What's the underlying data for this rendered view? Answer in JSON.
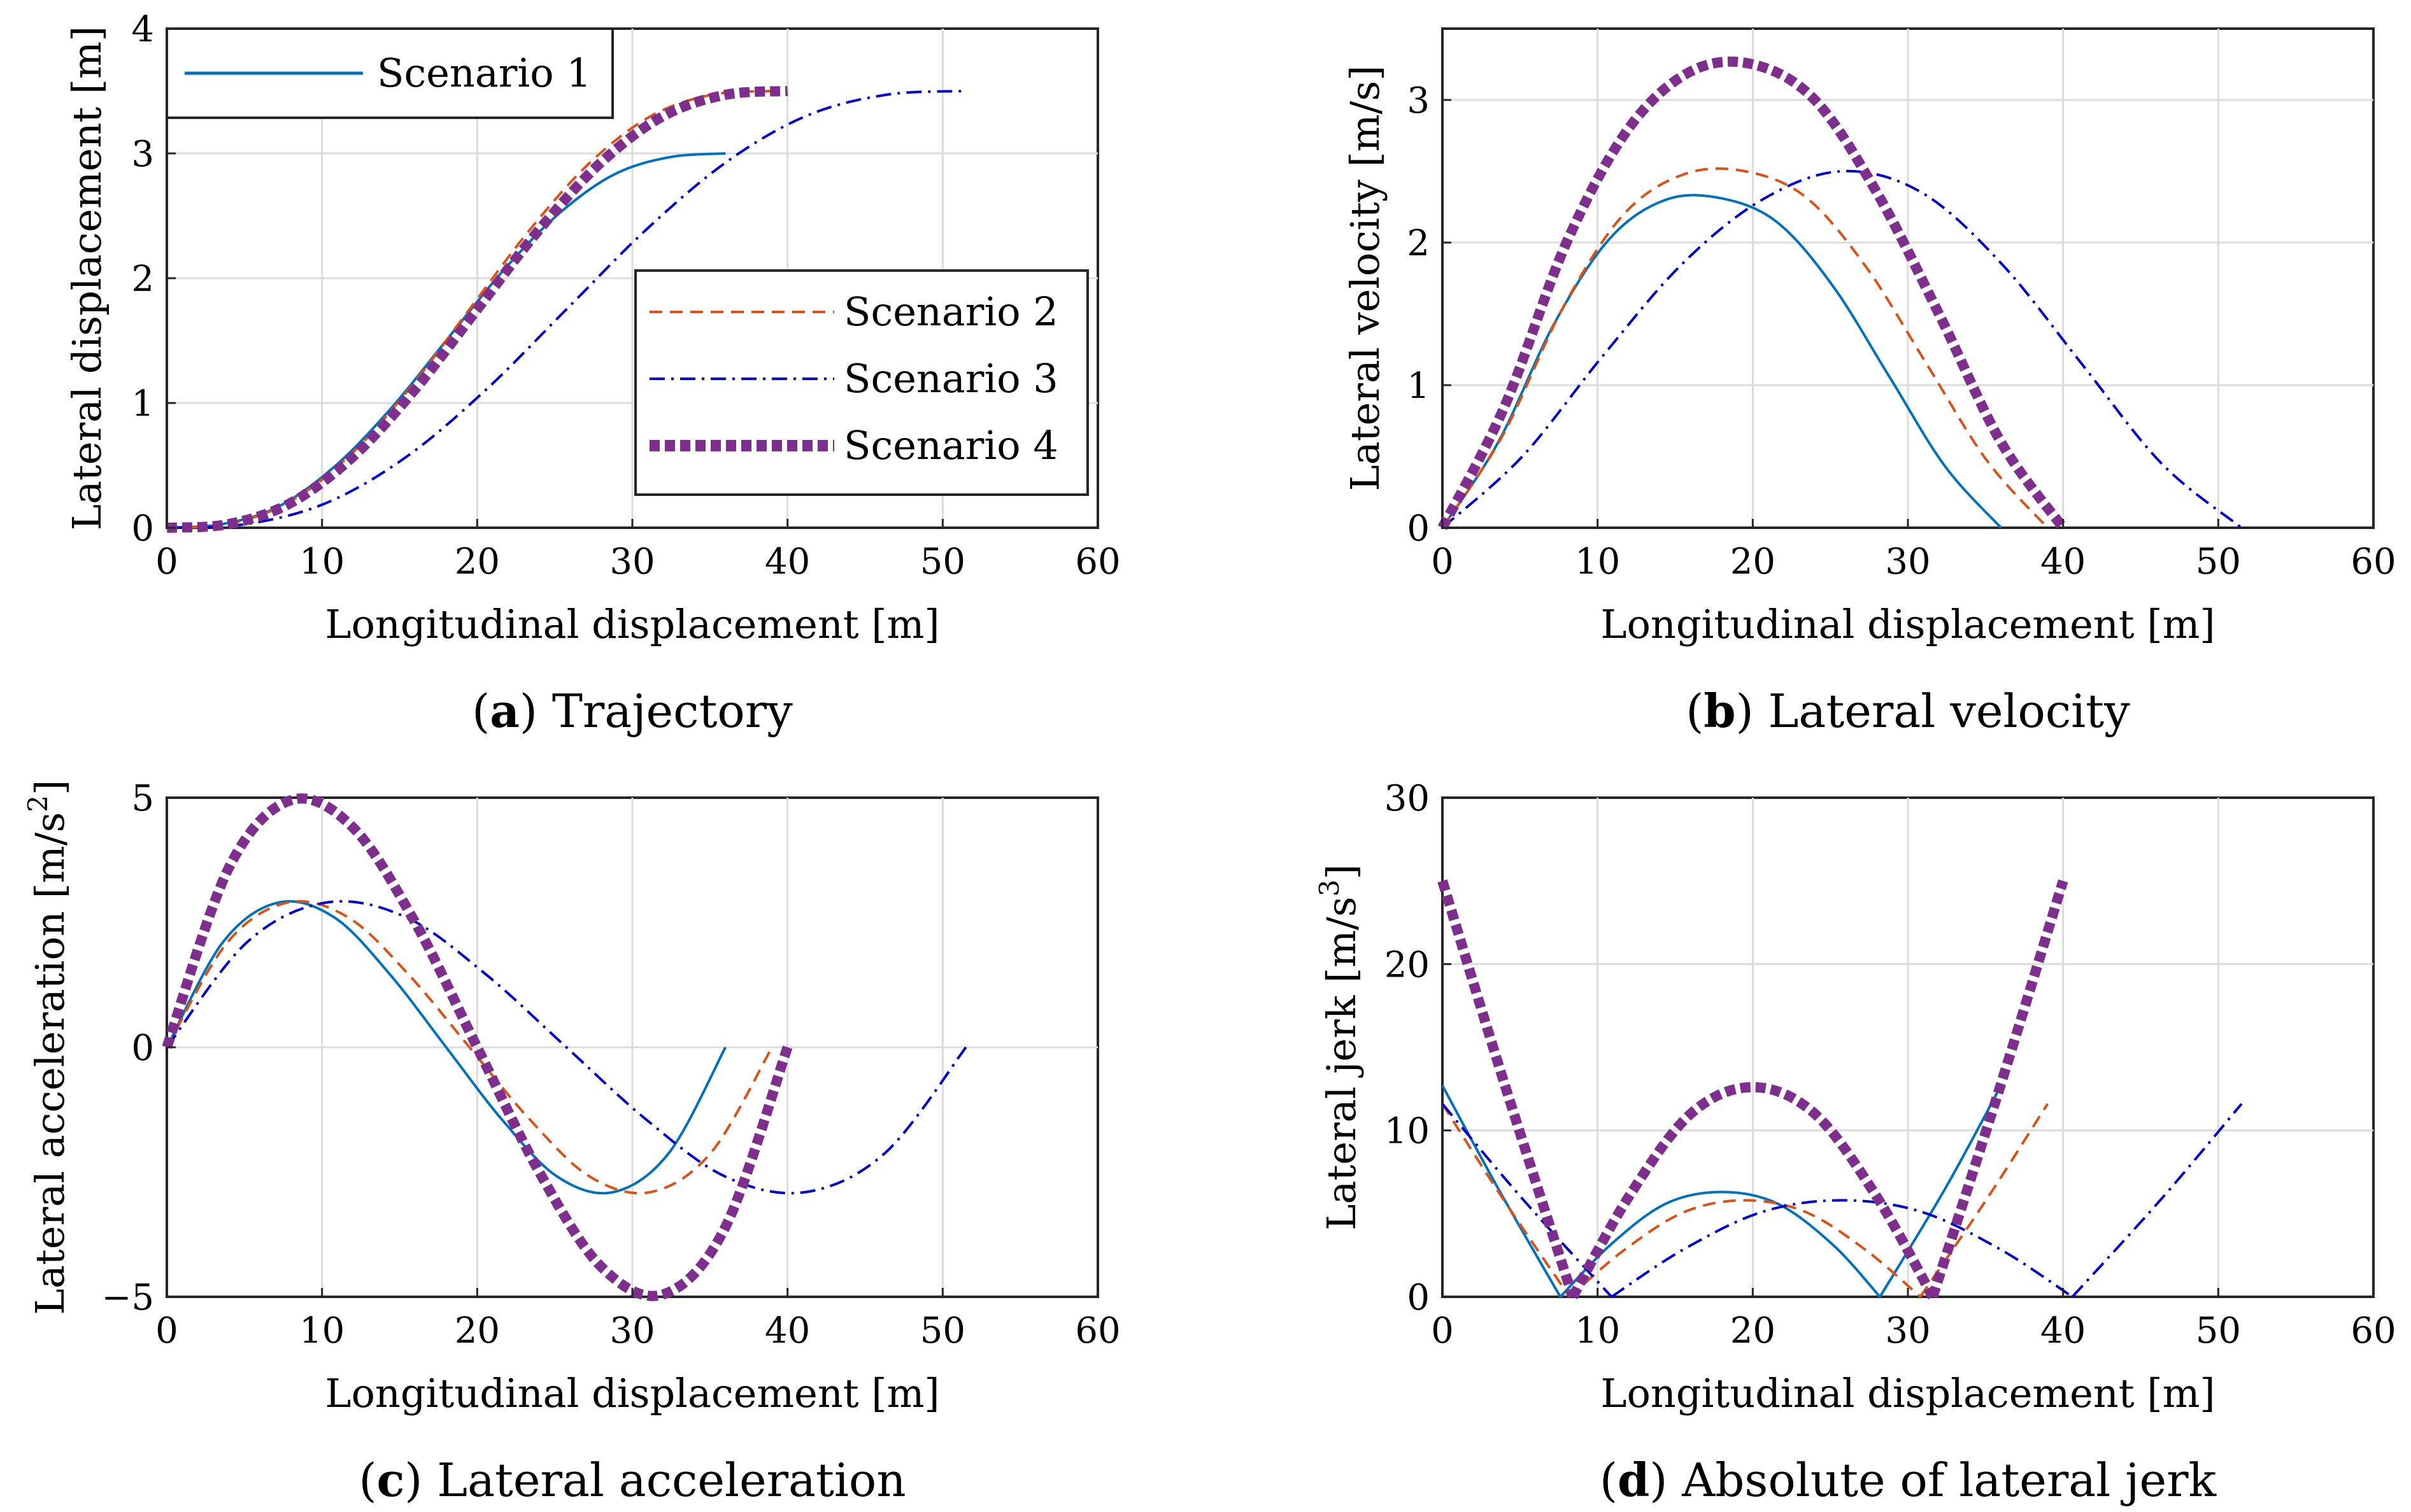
{
  "figure": {
    "panels": [
      "a",
      "b",
      "c",
      "d"
    ]
  },
  "colors": {
    "s1": "#0072BD",
    "s2": "#D95319",
    "s3": "#0000CD",
    "s4": "#7E2F8E",
    "grid": "#dcdcdc",
    "axis": "#262626"
  },
  "legend": {
    "s1": "Scenario 1",
    "s2": "Scenario 2",
    "s3": "Scenario 3",
    "s4": "Scenario 4"
  },
  "captions": {
    "a": {
      "letter": "a",
      "text": " Trajectory"
    },
    "b": {
      "letter": "b",
      "text": " Lateral velocity"
    },
    "c": {
      "letter": "c",
      "text": " Lateral acceleration"
    },
    "d": {
      "letter": "d",
      "text": " Absolute of lateral jerk"
    }
  },
  "chart_data": [
    {
      "id": "a",
      "type": "line",
      "title": "Trajectory",
      "xlabel": "Longitudinal displacement [m]",
      "ylabel": "Lateral displacement [m]",
      "xlim": [
        0,
        60
      ],
      "ylim": [
        0,
        4
      ],
      "xticks": [
        "0",
        "10",
        "20",
        "30",
        "40",
        "50",
        "60"
      ],
      "yticks": [
        "0",
        "1",
        "2",
        "3",
        "4"
      ],
      "legend_position": "top-left and center-right",
      "series": [
        {
          "name": "Scenario 1",
          "x": [
            0,
            3.6,
            7.2,
            10.8,
            14.4,
            18.0,
            21.6,
            25.2,
            28.8,
            32.4,
            36.0
          ],
          "y": [
            0,
            0.03,
            0.17,
            0.49,
            0.95,
            1.5,
            2.05,
            2.51,
            2.83,
            2.97,
            3.0
          ]
        },
        {
          "name": "Scenario 2",
          "x": [
            0,
            3.9,
            7.8,
            11.7,
            15.6,
            19.5,
            23.4,
            27.3,
            31.2,
            35.1,
            39.0
          ],
          "y": [
            0,
            0.03,
            0.2,
            0.57,
            1.11,
            1.75,
            2.39,
            2.93,
            3.3,
            3.47,
            3.5
          ]
        },
        {
          "name": "Scenario 3",
          "x": [
            0,
            5.15,
            10.3,
            15.45,
            20.6,
            25.75,
            30.9,
            36.05,
            41.2,
            46.35,
            51.5
          ],
          "y": [
            0,
            0.03,
            0.2,
            0.57,
            1.11,
            1.75,
            2.39,
            2.93,
            3.3,
            3.47,
            3.5
          ]
        },
        {
          "name": "Scenario 4",
          "x": [
            0,
            4.0,
            8.0,
            12.0,
            16.0,
            20.0,
            24.0,
            28.0,
            32.0,
            36.0,
            40.0
          ],
          "y": [
            0,
            0.03,
            0.2,
            0.57,
            1.11,
            1.75,
            2.39,
            2.93,
            3.3,
            3.47,
            3.5
          ]
        }
      ]
    },
    {
      "id": "b",
      "type": "line",
      "title": "Lateral velocity",
      "xlabel": "Longitudinal displacement [m]",
      "ylabel": "Lateral velocity [m/s]",
      "xlim": [
        0,
        60
      ],
      "ylim": [
        0,
        3.5
      ],
      "xticks": [
        "0",
        "10",
        "20",
        "30",
        "40",
        "50",
        "60"
      ],
      "yticks": [
        "0",
        "1",
        "2",
        "3"
      ],
      "series": [
        {
          "name": "Scenario 1",
          "x": [
            0,
            3.6,
            7.2,
            10.8,
            14.4,
            18.0,
            21.6,
            25.2,
            28.8,
            32.4,
            36.0
          ],
          "y": [
            0,
            0.6,
            1.43,
            2.03,
            2.3,
            2.31,
            2.14,
            1.69,
            1.06,
            0.43,
            0
          ]
        },
        {
          "name": "Scenario 2",
          "x": [
            0,
            3.9,
            7.8,
            11.7,
            15.6,
            19.5,
            23.4,
            27.3,
            31.2,
            35.1,
            39.0
          ],
          "y": [
            0,
            0.65,
            1.55,
            2.2,
            2.48,
            2.5,
            2.32,
            1.83,
            1.15,
            0.47,
            0
          ]
        },
        {
          "name": "Scenario 3",
          "x": [
            0,
            5.15,
            10.3,
            15.45,
            20.6,
            25.75,
            30.9,
            36.05,
            41.2,
            46.35,
            51.5
          ],
          "y": [
            0,
            0.5,
            1.2,
            1.85,
            2.3,
            2.5,
            2.35,
            1.85,
            1.15,
            0.45,
            0
          ]
        },
        {
          "name": "Scenario 4",
          "x": [
            0,
            4.0,
            8.0,
            12.0,
            16.0,
            20.0,
            24.0,
            28.0,
            32.0,
            36.0,
            40.0
          ],
          "y": [
            0,
            0.85,
            2.0,
            2.8,
            3.2,
            3.25,
            3.0,
            2.35,
            1.5,
            0.6,
            0
          ]
        }
      ]
    },
    {
      "id": "c",
      "type": "line",
      "title": "Lateral acceleration",
      "xlabel": "Longitudinal displacement [m]",
      "ylabel": "Lateral acceleration  [m/s",
      "ylabel_sup": "2",
      "ylabel_end": "]",
      "xlim": [
        0,
        60
      ],
      "ylim": [
        -5,
        5
      ],
      "xticks": [
        "0",
        "10",
        "20",
        "30",
        "40",
        "50",
        "60"
      ],
      "yticks": [
        "−5",
        "0",
        "5"
      ],
      "series": [
        {
          "name": "Scenario 1",
          "x": [
            0,
            3.6,
            7.2,
            10.8,
            14.4,
            18.0,
            21.6,
            25.2,
            28.8,
            32.4,
            36.0
          ],
          "y": [
            0,
            2.1,
            2.9,
            2.6,
            1.45,
            0,
            -1.45,
            -2.6,
            -2.9,
            -2.1,
            0
          ]
        },
        {
          "name": "Scenario 2",
          "x": [
            0,
            3.9,
            7.8,
            11.7,
            15.6,
            19.5,
            23.4,
            27.3,
            31.2,
            35.1,
            39.0
          ],
          "y": [
            0,
            2.1,
            2.9,
            2.6,
            1.45,
            0,
            -1.45,
            -2.6,
            -2.9,
            -2.1,
            0
          ]
        },
        {
          "name": "Scenario 3",
          "x": [
            0,
            5.15,
            10.3,
            15.45,
            20.6,
            25.75,
            30.9,
            36.05,
            41.2,
            46.35,
            51.5
          ],
          "y": [
            0,
            2.1,
            2.9,
            2.6,
            1.45,
            0,
            -1.45,
            -2.6,
            -2.9,
            -2.1,
            0
          ]
        },
        {
          "name": "Scenario 4",
          "x": [
            0,
            4.0,
            8.0,
            12.0,
            16.0,
            20.0,
            24.0,
            28.0,
            32.0,
            36.0,
            40.0
          ],
          "y": [
            0,
            3.6,
            4.95,
            4.4,
            2.5,
            0,
            -2.5,
            -4.4,
            -4.95,
            -3.6,
            0
          ]
        }
      ]
    },
    {
      "id": "d",
      "type": "line",
      "title": "Absolute of lateral jerk",
      "xlabel": "Longitudinal displacement [m]",
      "ylabel": "Lateral jerk [m/s",
      "ylabel_sup": "3",
      "ylabel_end": "]",
      "xlim": [
        0,
        60
      ],
      "ylim": [
        0,
        30
      ],
      "xticks": [
        "0",
        "10",
        "20",
        "30",
        "40",
        "50",
        "60"
      ],
      "yticks": [
        "0",
        "10",
        "20",
        "30"
      ],
      "series": [
        {
          "name": "Scenario 1",
          "x": [
            0,
            3.6,
            7.6,
            10.8,
            14.4,
            18.0,
            21.6,
            25.2,
            28.2,
            32.4,
            36.0
          ],
          "y": [
            12.7,
            6.5,
            0,
            3.1,
            5.6,
            6.3,
            5.6,
            3.1,
            0,
            6.5,
            12.7
          ]
        },
        {
          "name": "Scenario 2",
          "x": [
            0,
            3.9,
            8.2,
            11.7,
            15.6,
            19.5,
            23.4,
            27.3,
            30.8,
            35.1,
            39.0
          ],
          "y": [
            11.6,
            5.9,
            0,
            2.8,
            5.1,
            5.8,
            5.1,
            2.8,
            0,
            5.9,
            11.6
          ]
        },
        {
          "name": "Scenario 3",
          "x": [
            0,
            5.15,
            10.9,
            15.45,
            20.6,
            25.75,
            30.9,
            36.05,
            40.6,
            46.35,
            51.5
          ],
          "y": [
            11.6,
            5.9,
            0,
            2.8,
            5.1,
            5.8,
            5.1,
            2.8,
            0,
            5.9,
            11.6
          ]
        },
        {
          "name": "Scenario 4",
          "x": [
            0,
            4.0,
            8.4,
            12.0,
            16.0,
            20.0,
            24.0,
            28.0,
            31.6,
            36.0,
            40.0
          ],
          "y": [
            25.0,
            12.8,
            0,
            6.0,
            11.0,
            12.6,
            11.0,
            6.0,
            0,
            12.8,
            25.0
          ]
        }
      ]
    }
  ]
}
